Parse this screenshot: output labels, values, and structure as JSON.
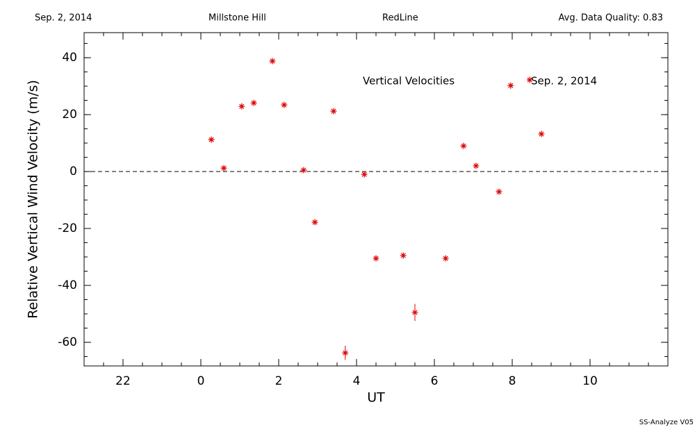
{
  "chart_data": {
    "type": "scatter",
    "header": [
      "Sep. 2, 2014",
      "Millstone Hill",
      "RedLine",
      "Avg. Data Quality: 0.83"
    ],
    "annotations": [
      "Vertical Velocities",
      "Sep. 2, 2014"
    ],
    "footer": "SS-Analyze V05",
    "x_label": "UT",
    "y_label": "Relative Vertical Wind Velocity (m/s)",
    "x": [
      0.27,
      0.59,
      1.05,
      1.36,
      1.84,
      2.14,
      2.64,
      2.93,
      3.41,
      3.71,
      4.2,
      4.5,
      5.2,
      5.5,
      6.29,
      6.75,
      7.07,
      7.66,
      7.96,
      8.45,
      8.75
    ],
    "values": [
      11.2,
      1.2,
      22.9,
      24.1,
      38.8,
      23.4,
      0.5,
      -17.8,
      21.2,
      -63.7,
      -1.0,
      -30.5,
      -29.5,
      -49.5,
      -30.5,
      9.0,
      2.0,
      -7.1,
      30.2,
      32.2,
      13.2
    ],
    "errors": [
      0.5,
      0.5,
      0.5,
      0.5,
      0.5,
      0.5,
      0.5,
      0.5,
      0.5,
      2.5,
      0.5,
      0.5,
      0.5,
      3.0,
      0.5,
      0.5,
      0.5,
      0.5,
      0.5,
      0.5,
      0.5
    ],
    "color": "#e00000",
    "xlim": [
      -3,
      12
    ],
    "xticks": [
      {
        "value": -2,
        "label": "22"
      },
      0,
      2,
      4,
      6,
      8,
      10
    ],
    "ylim": [
      -68.3,
      48.8
    ],
    "yticks": [
      -60,
      -40,
      -20,
      0,
      20,
      40
    ],
    "hline": 0
  }
}
